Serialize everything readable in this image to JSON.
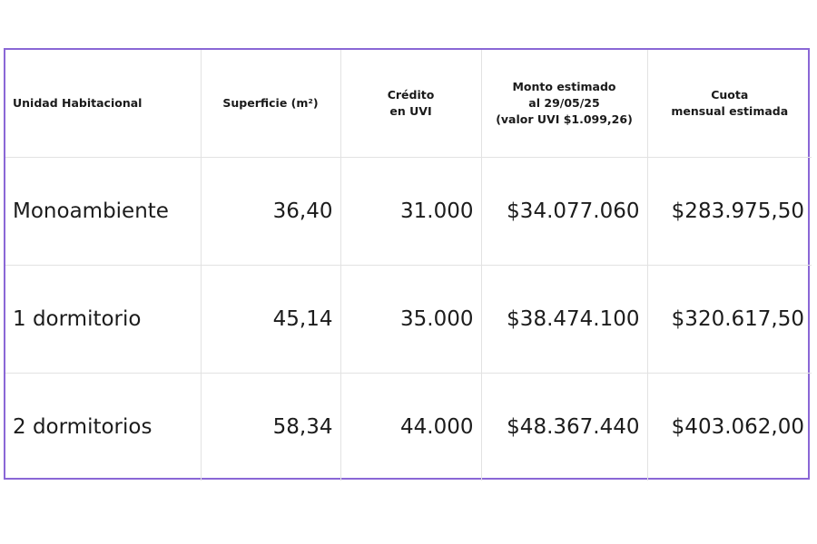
{
  "table": {
    "headers": [
      "Unidad Habitacional",
      "Superficie (m²)",
      "Crédito\nen UVI",
      "Monto estimado\nal 29/05/25\n(valor UVI $1.099,26)",
      "Cuota\nmensual estimada"
    ],
    "rows": [
      [
        "Monoambiente",
        "36,40",
        "31.000",
        "$34.077.060",
        "$283.975,50"
      ],
      [
        "1 dormitorio",
        "45,14",
        "35.000",
        "$38.474.100",
        "$320.617,50"
      ],
      [
        "2 dormitorios",
        "58,34",
        "44.000",
        "$48.367.440",
        "$403.062,00"
      ]
    ]
  },
  "colors": {
    "frame_border": "#8a67d6",
    "grid_lines": "#e2e2e2",
    "text": "#1a1a1a"
  }
}
